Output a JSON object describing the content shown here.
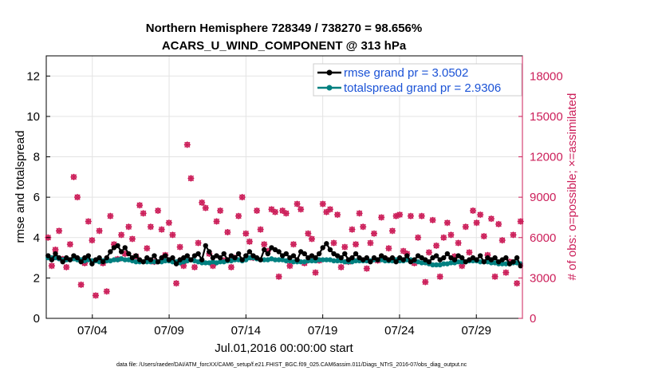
{
  "chart_data": {
    "type": "line",
    "title": "Northern Hemisphere 728349 / 738270 = 98.656%",
    "subtitle": "ACARS_U_WIND_COMPONENT @ 313 hPa",
    "ylabel_left": "rmse and totalspread",
    "ylabel_right": "# of obs: o=possible; ×=assimilated",
    "xlabel": "Jul.01,2016 00:00:00 start",
    "footnote": "data file: /Users/raeder/DAI/ATM_forcXX/CAM6_setup/f.e21.FHIST_BGC.f09_025.CAM6assim.011/Diags_NTrS_2016-07/obs_diag_output.nc",
    "x_tick_labels": [
      "07/04",
      "07/09",
      "07/14",
      "07/19",
      "07/24",
      "07/29"
    ],
    "x_tick_days": [
      4,
      9,
      14,
      19,
      24,
      29
    ],
    "xlim_days": [
      1,
      32
    ],
    "ylim_left": [
      0,
      13
    ],
    "y_ticks_left": [
      "0",
      "2",
      "4",
      "6",
      "8",
      "10",
      "12"
    ],
    "ylim_right": [
      0,
      19500
    ],
    "y_ticks_right": [
      "0",
      "3000",
      "6000",
      "9000",
      "12000",
      "15000",
      "18000"
    ],
    "grid": true,
    "legend_position": "top-right",
    "colors": {
      "rmse": "#000000",
      "totalspread": "#008080",
      "obs": "#cc1f5a",
      "axis_right": "#cc1f5a",
      "legend_text": "#1a52d6"
    },
    "series": [
      {
        "name": "rmse grand pr = 3.0502",
        "key": "rmse",
        "values": [
          3.1,
          2.9,
          3.2,
          3.0,
          2.8,
          3.0,
          2.9,
          3.1,
          3.0,
          2.8,
          3.0,
          3.1,
          2.7,
          2.9,
          3.0,
          2.8,
          3.0,
          3.3,
          3.5,
          3.6,
          3.3,
          3.5,
          3.2,
          3.0,
          3.1,
          2.9,
          2.8,
          3.0,
          2.9,
          3.1,
          2.8,
          3.0,
          3.1,
          2.9,
          3.0,
          2.7,
          2.9,
          3.0,
          3.1,
          2.9,
          3.1,
          3.2,
          2.9,
          3.6,
          3.3,
          3.0,
          3.1,
          3.0,
          3.2,
          2.9,
          3.1,
          3.0,
          3.2,
          2.9,
          3.1,
          3.3,
          3.1,
          3.0,
          2.9,
          3.4,
          3.2,
          3.5,
          3.4,
          3.3,
          3.1,
          3.2,
          3.0,
          3.1,
          2.9,
          3.3,
          3.2,
          3.0,
          3.1,
          3.0,
          3.2,
          3.5,
          3.7,
          3.4,
          3.2,
          3.1,
          3.0,
          3.2,
          2.9,
          3.0,
          3.2,
          3.0,
          2.9,
          3.0,
          2.8,
          3.0,
          2.9,
          3.1,
          3.0,
          2.9,
          3.0,
          2.8,
          3.0,
          2.9,
          3.1,
          2.8,
          2.9,
          3.1,
          3.0,
          2.9,
          2.8,
          3.0,
          3.1,
          2.9,
          3.0,
          3.2,
          3.0,
          2.9,
          3.1,
          3.0,
          2.8,
          2.9,
          3.0,
          2.9,
          3.1,
          2.8,
          3.0,
          2.9,
          3.0,
          2.8,
          2.9,
          3.0,
          2.7,
          2.8,
          3.0,
          2.6
        ]
      },
      {
        "name": "totalspread grand pr = 2.9306",
        "key": "totalspread",
        "values": [
          3.0,
          3.0,
          3.0,
          2.95,
          2.9,
          2.9,
          2.9,
          2.95,
          2.9,
          2.9,
          2.85,
          2.9,
          2.85,
          2.85,
          2.8,
          2.85,
          2.85,
          2.85,
          2.9,
          2.9,
          2.95,
          2.9,
          2.9,
          2.85,
          2.8,
          2.8,
          2.8,
          2.8,
          2.8,
          2.8,
          2.8,
          2.8,
          2.85,
          2.85,
          2.8,
          2.8,
          2.75,
          2.8,
          2.85,
          2.9,
          2.85,
          2.8,
          2.75,
          2.75,
          2.75,
          2.8,
          2.75,
          2.8,
          2.8,
          2.85,
          2.85,
          2.9,
          2.9,
          2.85,
          2.9,
          3.0,
          3.0,
          2.95,
          2.9,
          2.9,
          2.9,
          2.95,
          2.9,
          2.9,
          2.9,
          2.85,
          2.85,
          2.8,
          2.8,
          2.8,
          2.8,
          2.85,
          2.85,
          2.85,
          2.9,
          2.9,
          2.9,
          2.9,
          2.85,
          2.85,
          2.85,
          2.8,
          2.8,
          2.8,
          2.85,
          2.85,
          2.85,
          2.85,
          2.85,
          2.9,
          2.9,
          2.9,
          2.85,
          2.85,
          2.85,
          2.9,
          2.85,
          2.85,
          2.9,
          2.9,
          2.85,
          2.8,
          2.75,
          2.75,
          2.7,
          2.65,
          2.65,
          2.65,
          2.7,
          2.7,
          2.75,
          2.75,
          2.8,
          2.8,
          2.8,
          2.85,
          2.85,
          2.85,
          2.8,
          2.8,
          2.8,
          2.75,
          2.75,
          2.7,
          2.7,
          2.7,
          2.7,
          2.75,
          2.75,
          2.7
        ]
      },
      {
        "name": "obs",
        "key": "obs",
        "values": [
          6000,
          3900,
          5100,
          6500,
          4400,
          3800,
          5500,
          10500,
          9000,
          2500,
          4100,
          7200,
          5800,
          1700,
          6500,
          4100,
          2000,
          7600,
          5500,
          4400,
          6200,
          4800,
          6800,
          5900,
          4600,
          8400,
          7800,
          5200,
          6800,
          4200,
          8000,
          6600,
          4700,
          7100,
          6200,
          2600,
          5300,
          3900,
          12900,
          10400,
          3800,
          5600,
          8600,
          8200,
          4800,
          3900,
          7200,
          8000,
          4300,
          6400,
          3800,
          4500,
          7600,
          9000,
          6300,
          5700,
          4500,
          8000,
          6600,
          5500,
          5000,
          8100,
          7900,
          3100,
          8000,
          7800,
          3900,
          5500,
          8500,
          8100,
          4100,
          6300,
          5900,
          3400,
          4300,
          8500,
          7900,
          8100,
          5600,
          7700,
          3800,
          5300,
          4200,
          6600,
          5500,
          7800,
          6800,
          3700,
          5600,
          6300,
          4300,
          7500,
          4400,
          5200,
          6500,
          7600,
          7700,
          5000,
          4800,
          7600,
          4100,
          6000,
          7600,
          2700,
          4900,
          7300,
          5400,
          3100,
          6000,
          7100,
          6200,
          4600,
          5600,
          3900,
          6800,
          4900,
          8000,
          7100,
          7700,
          6100,
          4700,
          7400,
          3100,
          7000,
          5800,
          3400,
          4200,
          6200,
          2600,
          7200
        ]
      }
    ]
  }
}
